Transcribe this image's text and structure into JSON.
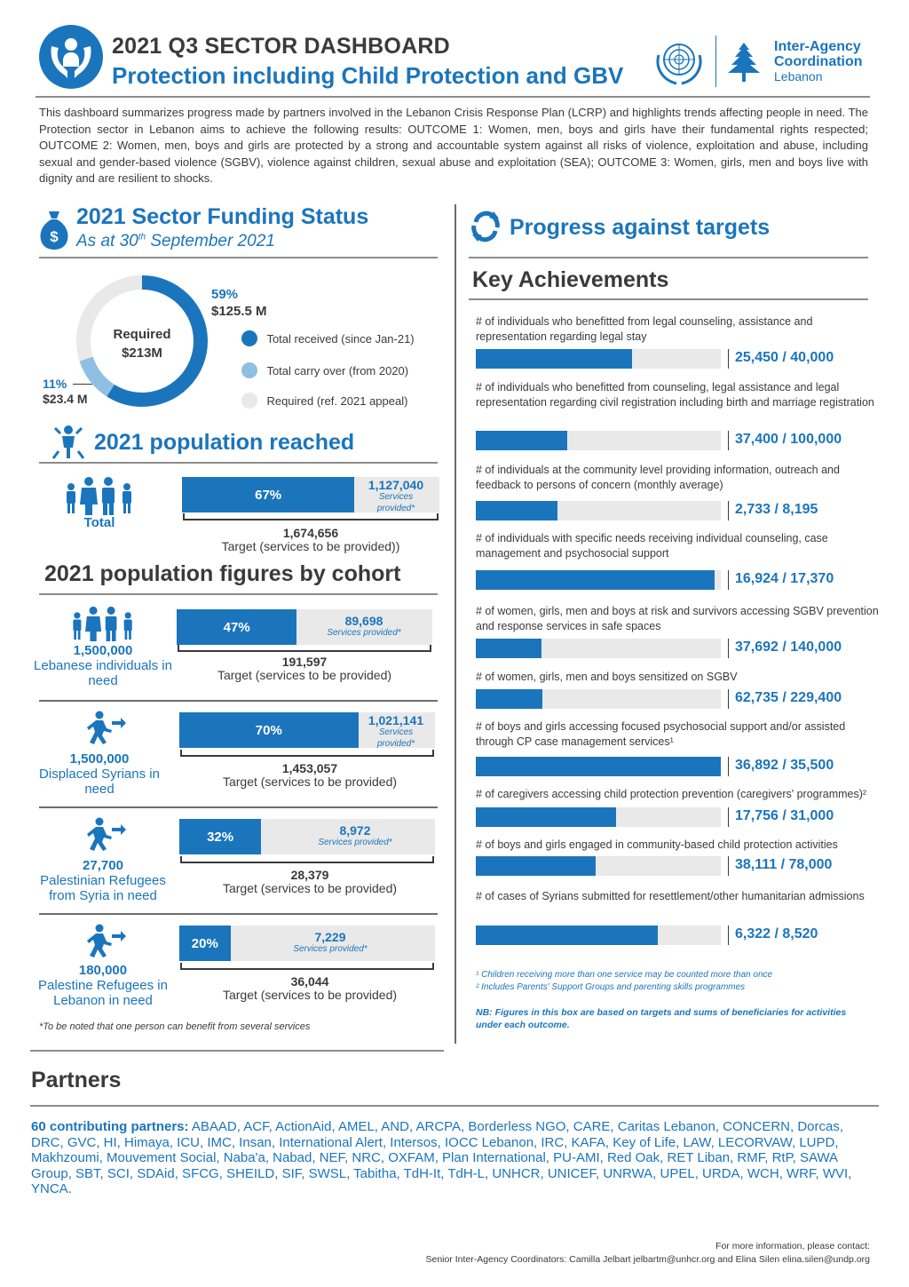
{
  "header": {
    "title": "2021 Q3 SECTOR DASHBOARD",
    "subtitle": "Protection including Child Protection and GBV",
    "org_line1": "Inter-Agency",
    "org_line2": "Coordination",
    "org_line3": "Lebanon"
  },
  "intro": "This dashboard summarizes progress made by partners involved in the Lebanon Crisis Response Plan (LCRP) and highlights trends affecting people in need. The Protection sector in Lebanon aims to achieve the following results: OUTCOME 1: Women, men, boys and girls have their fundamental rights respected; OUTCOME 2: Women, men, boys and girls are protected by a strong and accountable system against all risks of violence, exploitation and abuse, including sexual and gender-based violence (SGBV), violence against children, sexual abuse and exploitation (SEA); OUTCOME 3: Women, girls, men and boys live with dignity and are resilient to shocks.",
  "funding": {
    "title": "2021 Sector Funding Status",
    "subtitle_pre": "As at 30",
    "subtitle_sup": "th",
    "subtitle_post": " September 2021",
    "required_label": "Required",
    "required_value": "$213M",
    "received_pct": "59%",
    "received_value": "$125.5 M",
    "received_fraction": 0.59,
    "carryover_pct": "11%",
    "carryover_value": "$23.4 M",
    "carryover_fraction": 0.11,
    "legend": [
      {
        "label": "Total received (since Jan-21)",
        "color": "#1b75bc"
      },
      {
        "label": "Total carry over (from 2020)",
        "color": "#8fbfe3"
      },
      {
        "label": "Required (ref. 2021 appeal)",
        "color": "#e9e9e9"
      }
    ]
  },
  "reached": {
    "title": "2021 population reached",
    "total_label": "Total",
    "pct": "67%",
    "fraction": 0.67,
    "value": "1,127,040",
    "value_note": "Services provided*",
    "target": "1,674,656",
    "target_note": "Target (services to be provided))"
  },
  "cohorts": {
    "title": "2021 population figures by cohort",
    "items": [
      {
        "number": "1,500,000",
        "label": "Lebanese individuals in need",
        "pct": "47%",
        "fraction": 0.47,
        "value": "89,698",
        "value_note": "Services provided*",
        "target": "191,597",
        "target_note": "Target (services to be provided)"
      },
      {
        "number": "1,500,000",
        "label": "Displaced Syrians in need",
        "pct": "70%",
        "fraction": 0.7,
        "value": "1,021,141",
        "value_note": "Services provided*",
        "target": "1,453,057",
        "target_note": "Target (services to be provided)"
      },
      {
        "number": "27,700",
        "label": "Palestinian Refugees from Syria in need",
        "pct": "32%",
        "fraction": 0.32,
        "value": "8,972",
        "value_note": "Services provided*",
        "target": "28,379",
        "target_note": "Target (services to be provided)"
      },
      {
        "number": "180,000",
        "label": "Palestine Refugees in Lebanon in need",
        "pct": "20%",
        "fraction": 0.2,
        "value": "7,229",
        "value_note": "Services provided*",
        "target": "36,044",
        "target_note": "Target (services to be provided)"
      }
    ],
    "footnote": "*To be noted that one person can benefit from several services"
  },
  "progress": {
    "title": "Progress against targets",
    "key_title": "Key Achievements",
    "items": [
      {
        "label": "# of individuals who benefitted from legal counseling, assistance and representation regarding legal stay",
        "value": "25,450 / 40,000",
        "fraction": 0.636
      },
      {
        "label": "# of individuals who benefitted from counseling, legal assistance and legal representation regarding civil registration including birth and marriage registration",
        "value": "37,400 / 100,000",
        "fraction": 0.374
      },
      {
        "label": "# of individuals at the community level providing information, outreach and feedback to persons of concern (monthly average)",
        "value": "2,733 / 8,195",
        "fraction": 0.333
      },
      {
        "label": "# of individuals with specific needs receiving individual counseling, case management and psychosocial support",
        "value": "16,924 / 17,370",
        "fraction": 0.974
      },
      {
        "label": "# of women, girls, men and boys at risk and survivors accessing SGBV prevention and response services in safe spaces",
        "value": "37,692 / 140,000",
        "fraction": 0.269
      },
      {
        "label": "# of women, girls, men and boys sensitized on SGBV",
        "value": "62,735 / 229,400",
        "fraction": 0.273
      },
      {
        "label": "# of boys and girls accessing focused psychosocial support and/or assisted through CP case management services¹",
        "value": "36,892 / 35,500",
        "fraction": 1.0
      },
      {
        "label": "# of caregivers accessing child protection prevention (caregivers' programmes)²",
        "value": "17,756 / 31,000",
        "fraction": 0.573
      },
      {
        "label": "# of boys and girls engaged in community-based child protection activities",
        "value": "38,111 / 78,000",
        "fraction": 0.489
      },
      {
        "label": "# of cases of Syrians submitted for resettlement/other humanitarian admissions",
        "value": "6,322 / 8,520",
        "fraction": 0.742
      }
    ],
    "note1": "¹ Children receiving more than one service may be counted more than once",
    "note2": "² Includes Parents' Support Groups and parenting skills programmes",
    "nb": "NB: Figures in this box are based on targets and sums of beneficiaries for activities under each outcome."
  },
  "partners": {
    "title": "Partners",
    "lead": "60 contributing partners:",
    "list": " ABAAD, ACF, ActionAid, AMEL, AND, ARCPA, Borderless NGO, CARE, Caritas Lebanon, CONCERN, Dorcas, DRC, GVC, HI, Himaya, ICU, IMC, Insan, International Alert, Intersos, IOCC Lebanon, IRC, KAFA, Key of Life, LAW, LECORVAW, LUPD, Makhzoumi, Mouvement Social, Naba'a, Nabad, NEF, NRC, OXFAM, Plan International, PU-AMI, Red Oak, RET Liban, RMF, RtP, SAWA Group, SBT, SCI, SDAid, SFCG, SHEILD, SIF, SWSL, Tabitha, TdH-It, TdH-L, UNHCR, UNICEF, UNRWA, UPEL, URDA, WCH, WRF, WVI, YNCA."
  },
  "contact": {
    "line1": "For more information, please contact:",
    "line2": "Senior Inter-Agency Coordinators: Camilla Jelbart jelbartm@unhcr.org and Elina Silen elina.silen@undp.org"
  }
}
